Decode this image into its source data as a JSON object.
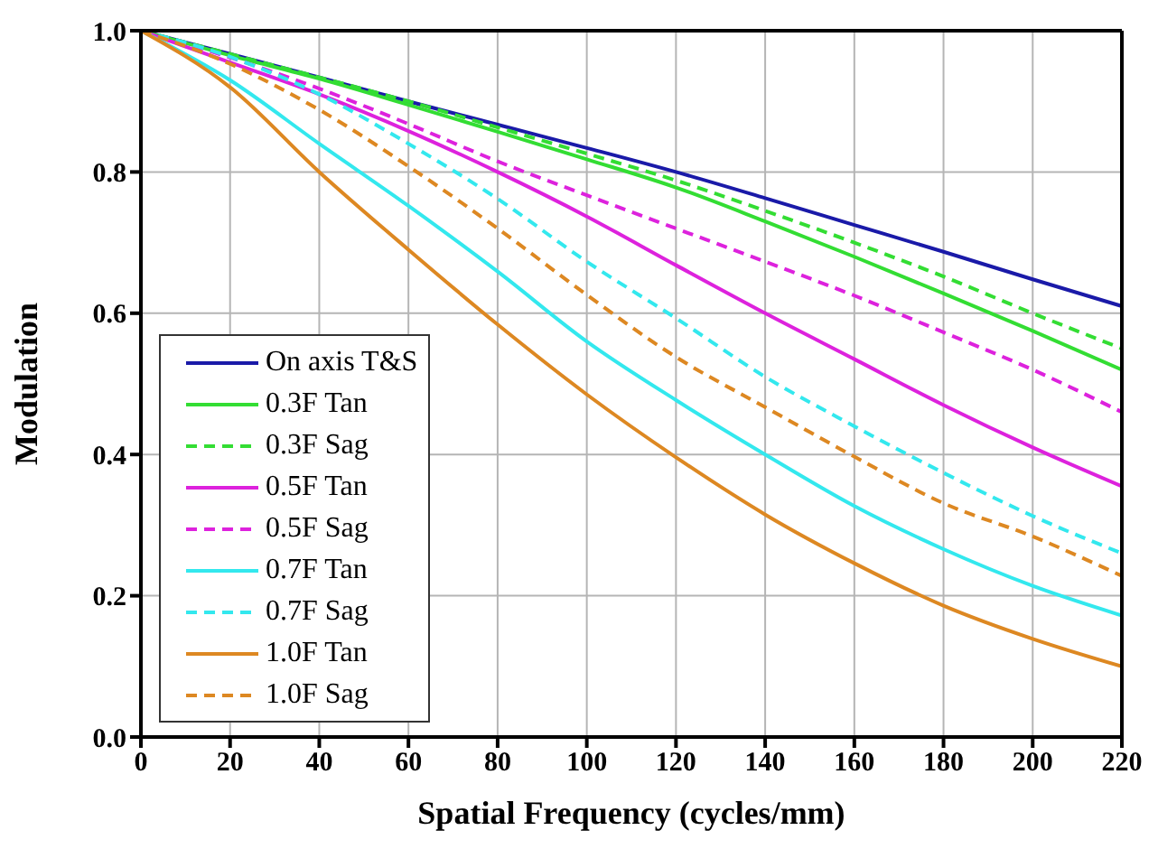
{
  "chart_data": {
    "type": "line",
    "xlabel": "Spatial Frequency (cycles/mm)",
    "ylabel": "Modulation",
    "x": [
      0,
      20,
      40,
      60,
      80,
      100,
      120,
      140,
      160,
      180,
      200,
      220
    ],
    "xlim": [
      0,
      220
    ],
    "xticks": [
      0,
      20,
      40,
      60,
      80,
      100,
      120,
      140,
      160,
      180,
      200,
      220
    ],
    "ylim": [
      0,
      1
    ],
    "yticks": [
      {
        "value": 0,
        "label": "0.0"
      },
      0.2,
      0.4,
      0.6,
      0.8,
      {
        "value": 1,
        "label": "1.0"
      }
    ],
    "grid": true,
    "legend": "bottom left",
    "marker": "none",
    "series": [
      {
        "name": "On axis T&S",
        "color": "#1a1aa8",
        "line_style": "solid",
        "values": [
          1,
          0.967,
          0.934,
          0.9,
          0.867,
          0.834,
          0.8,
          0.763,
          0.725,
          0.687,
          0.648,
          0.61
        ]
      },
      {
        "name": "0.3F Tan",
        "color": "#33dd33",
        "line_style": "solid",
        "values": [
          1,
          0.965,
          0.932,
          0.895,
          0.857,
          0.818,
          0.778,
          0.73,
          0.68,
          0.628,
          0.575,
          0.52
        ]
      },
      {
        "name": "0.3F Sag",
        "color": "#33dd33",
        "line_style": "dashed",
        "values": [
          1,
          0.967,
          0.934,
          0.9,
          0.863,
          0.826,
          0.788,
          0.745,
          0.7,
          0.652,
          0.6,
          0.55
        ]
      },
      {
        "name": "0.5F Tan",
        "color": "#dd22dd",
        "line_style": "solid",
        "values": [
          1,
          0.955,
          0.91,
          0.858,
          0.8,
          0.737,
          0.668,
          0.6,
          0.535,
          0.47,
          0.41,
          0.355
        ]
      },
      {
        "name": "0.5F Sag",
        "color": "#dd22dd",
        "line_style": "dashed",
        "values": [
          1,
          0.962,
          0.918,
          0.868,
          0.815,
          0.767,
          0.72,
          0.673,
          0.625,
          0.573,
          0.52,
          0.46
        ]
      },
      {
        "name": "0.7F Tan",
        "color": "#33e8ee",
        "line_style": "solid",
        "values": [
          1,
          0.93,
          0.84,
          0.752,
          0.659,
          0.56,
          0.477,
          0.4,
          0.327,
          0.266,
          0.214,
          0.172
        ]
      },
      {
        "name": "0.7F Sag",
        "color": "#33e8ee",
        "line_style": "dashed",
        "values": [
          1,
          0.963,
          0.91,
          0.84,
          0.762,
          0.673,
          0.593,
          0.51,
          0.44,
          0.374,
          0.313,
          0.26
        ]
      },
      {
        "name": "1.0F Tan",
        "color": "#dd8822",
        "line_style": "solid",
        "values": [
          1,
          0.92,
          0.8,
          0.69,
          0.584,
          0.485,
          0.396,
          0.315,
          0.246,
          0.186,
          0.139,
          0.1
        ]
      },
      {
        "name": "1.0F Sag",
        "color": "#dd8822",
        "line_style": "dashed",
        "values": [
          1,
          0.953,
          0.888,
          0.808,
          0.72,
          0.626,
          0.538,
          0.467,
          0.397,
          0.331,
          0.284,
          0.228
        ]
      }
    ]
  }
}
